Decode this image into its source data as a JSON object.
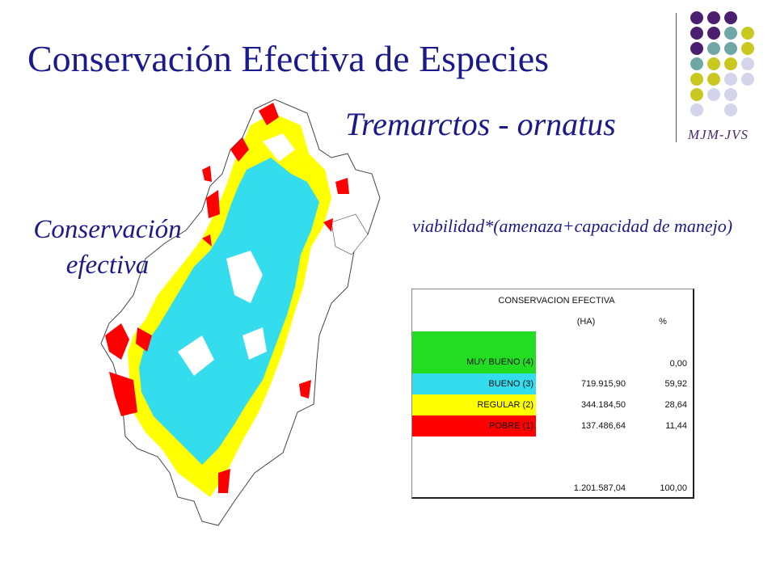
{
  "slide": {
    "title": "Conservación Efectiva de Especies",
    "species": "Tremarctos - ornatus",
    "side_label_line1": "Conservación",
    "side_label_line2": "efectiva",
    "formula": "viabilidad*(amenaza+capacidad de manejo)",
    "author": "MJM-JVS"
  },
  "colors": {
    "title": "#1a1a8c",
    "muy_bueno": "#22dd22",
    "bueno": "#33ddee",
    "regular": "#ffff00",
    "pobre": "#ff0000",
    "dot_purple": "#4b1f6f",
    "dot_teal": "#6fa7a7",
    "dot_olive": "#c8c820",
    "dot_lavender": "#d4d4ea"
  },
  "table": {
    "title": "CONSERVACION  EFECTIVA",
    "col_ha": "(HA)",
    "col_pct": "%",
    "rows": [
      {
        "label": "MUY BUENO (4)",
        "ha": "",
        "pct": "0,00"
      },
      {
        "label": "BUENO (3)",
        "ha": "719.915,90",
        "pct": "59,92"
      },
      {
        "label": "REGULAR (2)",
        "ha": "344.184,50",
        "pct": "28,64"
      },
      {
        "label": "POBRE (1)",
        "ha": "137.486,64",
        "pct": "11,44"
      }
    ],
    "total_ha": "1.201.587,04",
    "total_pct": "100,00"
  }
}
